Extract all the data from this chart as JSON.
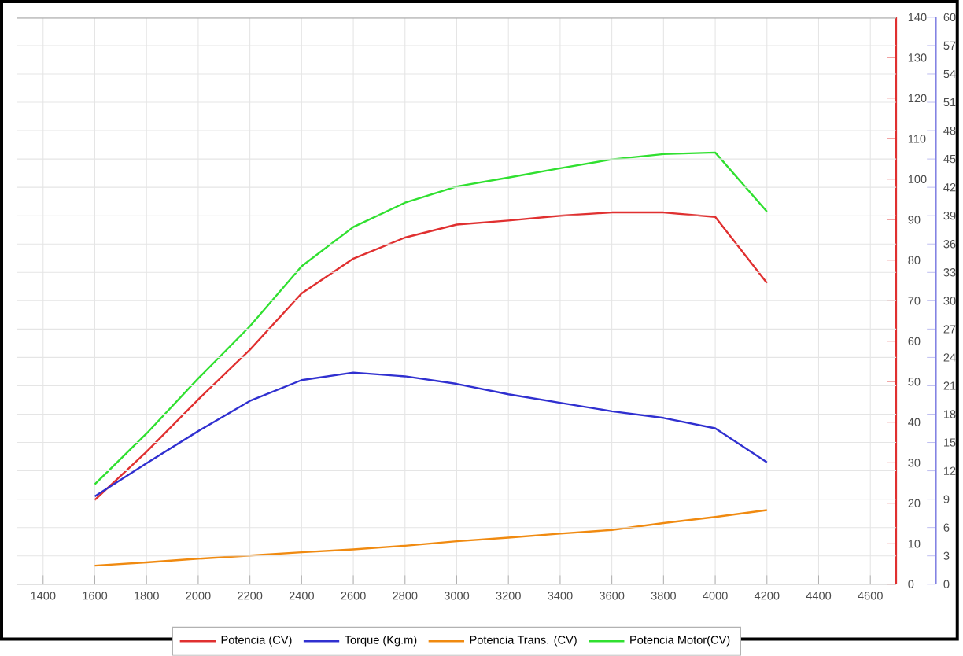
{
  "chart_data": {
    "type": "line",
    "x": [
      1600,
      1800,
      2000,
      2200,
      2400,
      2600,
      2800,
      3000,
      3200,
      3400,
      3600,
      3800,
      4000,
      4200
    ],
    "series": [
      {
        "name": "Potencia (CV)",
        "color": "#e03030",
        "values": [
          20.8,
          32.7,
          45.6,
          57.9,
          71.8,
          80.4,
          85.6,
          88.8,
          89.8,
          91,
          91.8,
          91.8,
          90.7,
          74.4
        ]
      },
      {
        "name": "Torque (Kg.m)",
        "color": "#3030d0",
        "axis": "y2",
        "values": [
          9.3,
          12.8,
          16.2,
          19.4,
          21.6,
          22.4,
          22.0,
          21.2,
          20.1,
          19.2,
          18.3,
          17.6,
          16.5,
          12.9
        ]
      },
      {
        "name": "Potencia Trans. (CV)",
        "color": "#f08a10",
        "values": [
          4.6,
          5.4,
          6.3,
          7.1,
          7.9,
          8.6,
          9.5,
          10.6,
          11.5,
          12.5,
          13.4,
          15.1,
          16.6,
          18.3
        ]
      },
      {
        "name": "Potencia Motor(CV)",
        "color": "#30e030",
        "values": [
          24.7,
          37.2,
          50.8,
          63.7,
          78.5,
          88.2,
          94.2,
          98.2,
          100.4,
          102.7,
          104.9,
          106.2,
          106.6,
          92
        ]
      }
    ],
    "xlim": [
      1300,
      4700
    ],
    "xticks": [
      1400,
      1600,
      1800,
      2000,
      2200,
      2400,
      2600,
      2800,
      3000,
      3200,
      3400,
      3600,
      3800,
      4000,
      4200,
      4400,
      4600
    ],
    "ylim": [
      0,
      140
    ],
    "yticks": [
      0,
      10,
      20,
      30,
      40,
      50,
      60,
      70,
      80,
      90,
      100,
      110,
      120,
      130,
      140
    ],
    "y2lim": [
      0,
      60
    ],
    "y2ticks": [
      0,
      3,
      6,
      9,
      12,
      15,
      18,
      21,
      24,
      27,
      30,
      33,
      36,
      39,
      42,
      45,
      48,
      51,
      54,
      57,
      60
    ],
    "grid": true,
    "legend": "bottom"
  }
}
